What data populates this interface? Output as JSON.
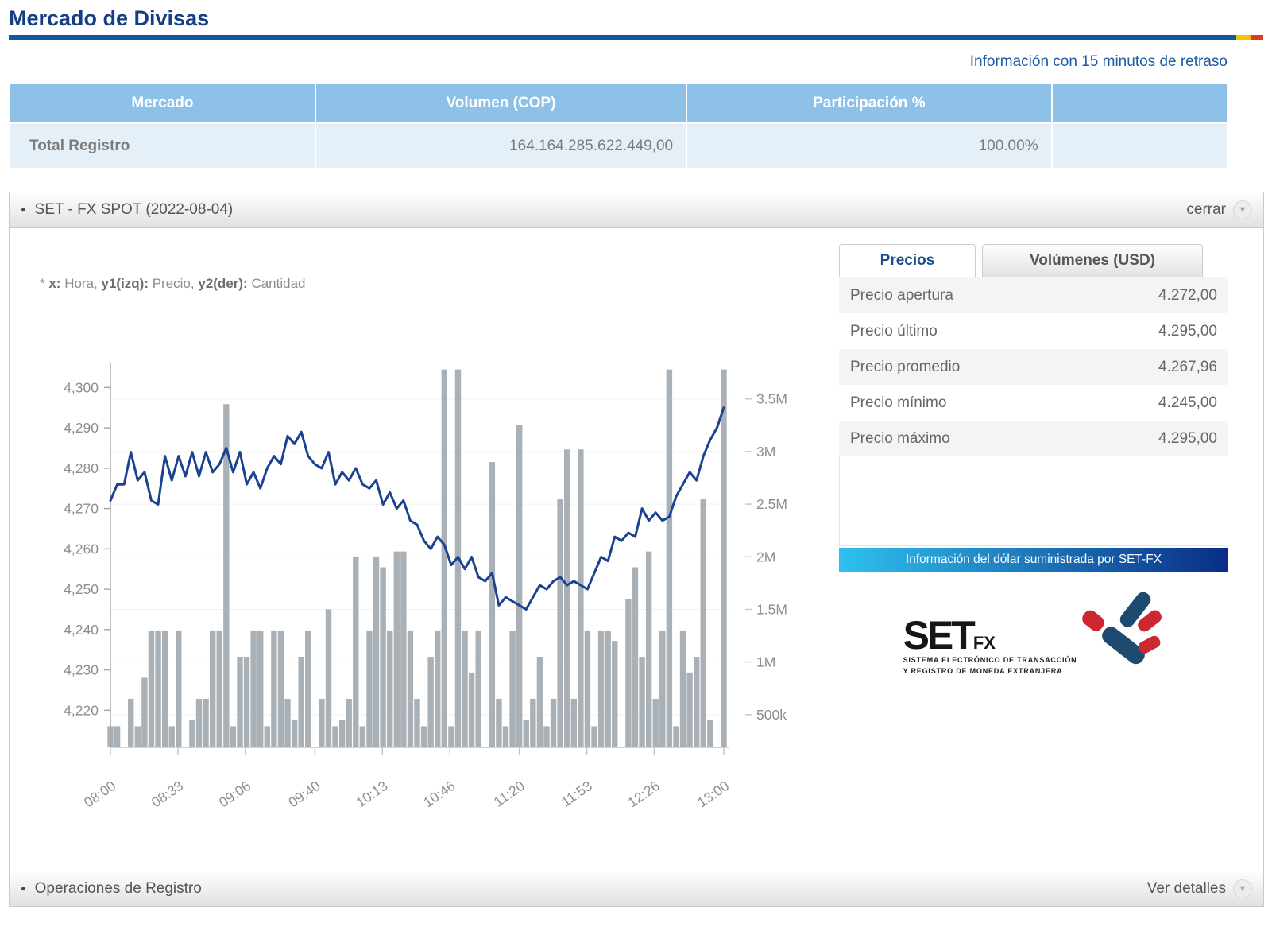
{
  "page": {
    "title": "Mercado de Divisas",
    "delay_note": "Información con 15 minutos de retraso"
  },
  "colors": {
    "flag_blue": "#1257a0",
    "flag_yellow": "#f2c500",
    "flag_red": "#dd3b2a",
    "banner_left": "#2fc1ef",
    "banner_right": "#0a2d86",
    "logo_blue": "#1d4a6e",
    "logo_red": "#cd2730"
  },
  "market_table": {
    "headers": [
      "Mercado",
      "Volumen (COP)",
      "Participación %",
      ""
    ],
    "rows": [
      {
        "market": "Total Registro",
        "volume": "164.164.285.622.449,00",
        "participation": "100.00%"
      }
    ]
  },
  "panel": {
    "title": "SET - FX SPOT (2022-08-04)",
    "close_label": "cerrar",
    "axis_note": {
      "prefix": "* ",
      "x_bold": "x:",
      "x_text": " Hora, ",
      "y1_bold": "y1(izq):",
      "y1_text": " Precio, ",
      "y2_bold": "y2(der):",
      "y2_text": " Cantidad"
    },
    "footer": {
      "title": "Operaciones de Registro",
      "action": "Ver detalles"
    }
  },
  "sidebar": {
    "tabs": [
      {
        "label": "Precios",
        "active": true
      },
      {
        "label": "Volúmenes (USD)",
        "active": false
      }
    ],
    "price_rows": [
      {
        "label": "Precio apertura",
        "value": "4.272,00"
      },
      {
        "label": "Precio último",
        "value": "4.295,00"
      },
      {
        "label": "Precio promedio",
        "value": "4.267,96"
      },
      {
        "label": "Precio mínimo",
        "value": "4.245,00"
      },
      {
        "label": "Precio máximo",
        "value": "4.295,00"
      }
    ],
    "banner": "Información del dólar suministrada por SET-FX",
    "logo": {
      "text": "SET",
      "sub": "FX",
      "tagline1": "SISTEMA ELECTRÓNICO DE TRANSACCIÓN",
      "tagline2": "Y REGISTRO DE MONEDA EXTRANJERA"
    }
  },
  "chart_data": {
    "type": "line+bar",
    "x_axis": {
      "label": "Hora",
      "tick_labels": [
        "08:00",
        "08:33",
        "09:06",
        "09:40",
        "10:13",
        "10:46",
        "11:20",
        "11:53",
        "12:26",
        "13:00"
      ],
      "tick_minutes": [
        0,
        33,
        66,
        100,
        133,
        166,
        200,
        233,
        266,
        300
      ],
      "total_minutes": 300
    },
    "y1_axis": {
      "label": "Precio",
      "range": [
        4211,
        4305
      ],
      "ticks": [
        {
          "v": 4220,
          "t": "4,220"
        },
        {
          "v": 4230,
          "t": "4,230"
        },
        {
          "v": 4240,
          "t": "4,240"
        },
        {
          "v": 4250,
          "t": "4,250"
        },
        {
          "v": 4260,
          "t": "4,260"
        },
        {
          "v": 4270,
          "t": "4,270"
        },
        {
          "v": 4280,
          "t": "4,280"
        },
        {
          "v": 4290,
          "t": "4,290"
        },
        {
          "v": 4300,
          "t": "4,300"
        }
      ]
    },
    "y2_axis": {
      "label": "Cantidad",
      "range_k": [
        0,
        3800
      ],
      "ticks": [
        {
          "v": 500,
          "t": "500k"
        },
        {
          "v": 1000,
          "t": "1M"
        },
        {
          "v": 1500,
          "t": "1.5M"
        },
        {
          "v": 2000,
          "t": "2M"
        },
        {
          "v": 2500,
          "t": "2.5M"
        },
        {
          "v": 3000,
          "t": "3M"
        },
        {
          "v": 3500,
          "t": "3.5M"
        }
      ]
    },
    "series": [
      {
        "name": "Precio",
        "type": "line",
        "color": "#1b4292",
        "values": [
          4272,
          4276,
          4276,
          4284,
          4277,
          4279,
          4272,
          4271,
          4283,
          4277,
          4283,
          4278,
          4284,
          4278,
          4284,
          4279,
          4281,
          4285,
          4279,
          4284,
          4276,
          4279,
          4275,
          4280,
          4283,
          4281,
          4288,
          4286,
          4289,
          4283,
          4281,
          4280,
          4284,
          4276,
          4279,
          4277,
          4280,
          4276,
          4275,
          4277,
          4271,
          4274,
          4270,
          4272,
          4267,
          4266,
          4262,
          4260,
          4263,
          4261,
          4256,
          4258,
          4255,
          4258,
          4253,
          4252,
          4254,
          4246,
          4248,
          4247,
          4246,
          4245,
          4248,
          4251,
          4250,
          4252,
          4253,
          4251,
          4252,
          4251,
          4250,
          4254,
          4258,
          4257,
          4263,
          4262,
          4264,
          4263,
          4270,
          4267,
          4269,
          4267,
          4268,
          4273,
          4276,
          4279,
          4277,
          4283,
          4287,
          4290,
          4295
        ]
      },
      {
        "name": "Cantidad",
        "type": "bar",
        "color": "#a9b0b6",
        "values_k": [
          390,
          390,
          0,
          650,
          390,
          850,
          1300,
          1300,
          1300,
          390,
          1300,
          0,
          450,
          650,
          650,
          1300,
          1300,
          3450,
          390,
          1050,
          1050,
          1300,
          1300,
          390,
          1300,
          1300,
          650,
          450,
          1050,
          1300,
          0,
          650,
          1500,
          390,
          450,
          650,
          2000,
          390,
          1300,
          2000,
          1900,
          1300,
          2050,
          2050,
          1300,
          650,
          390,
          1050,
          1300,
          3780,
          390,
          3780,
          1300,
          900,
          1300,
          0,
          2900,
          650,
          390,
          1300,
          3250,
          450,
          650,
          1050,
          390,
          650,
          2550,
          3020,
          650,
          3020,
          1300,
          390,
          1300,
          1300,
          1200,
          0,
          1600,
          1900,
          1050,
          2050,
          650,
          1300,
          3780,
          390,
          1300,
          900,
          1050,
          2550,
          450,
          0,
          3780
        ]
      }
    ]
  }
}
